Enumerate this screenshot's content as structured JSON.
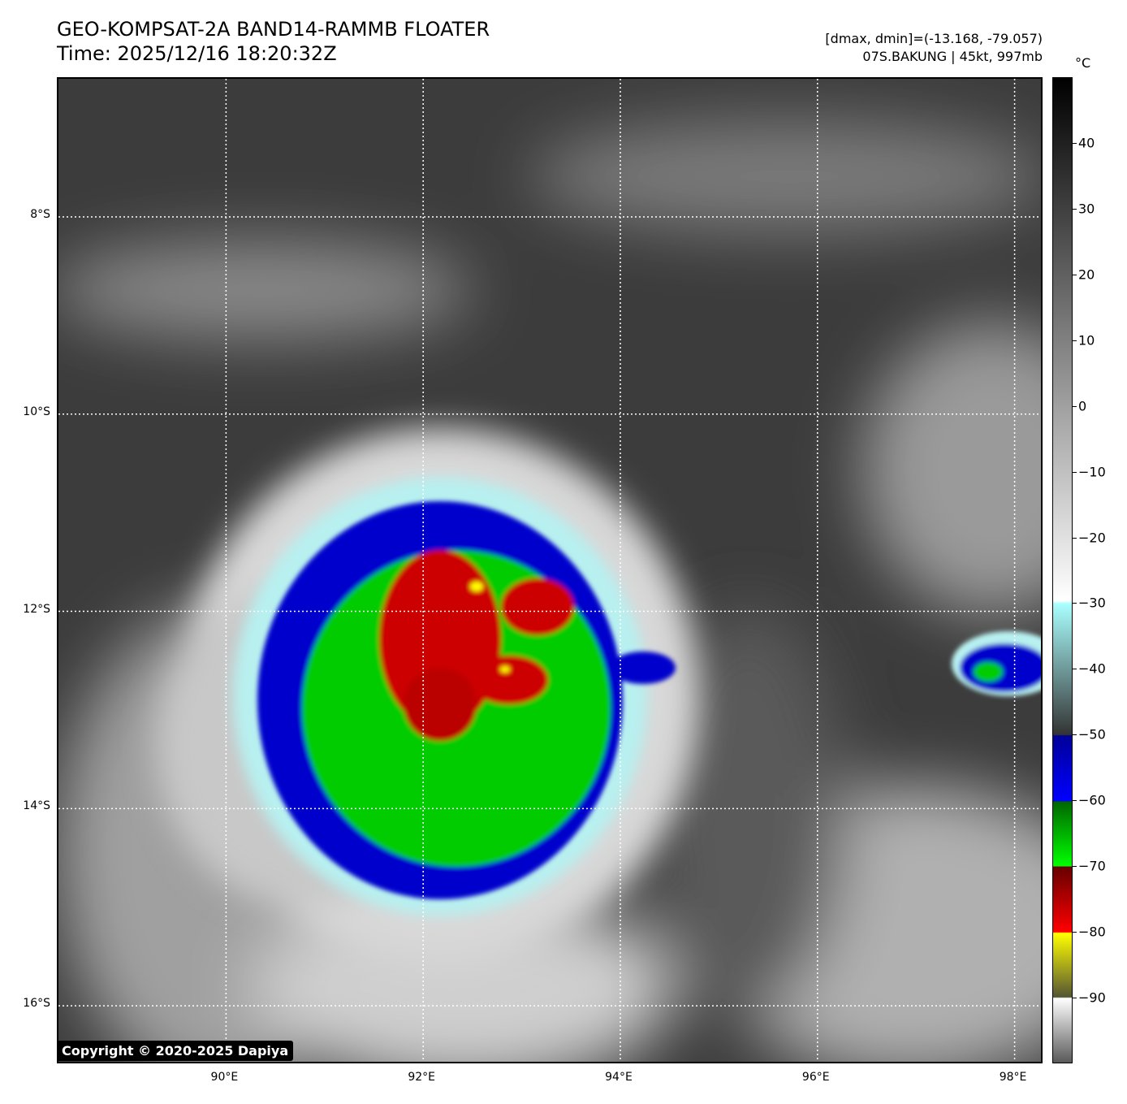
{
  "header": {
    "title": "GEO-KOMPSAT-2A BAND14-RAMMB FLOATER",
    "time": "Time: 2025/12/16 18:20:32Z",
    "dminmax": "[dmax, dmin]=(-13.168, -79.057)",
    "storm": "07S.BAKUNG | 45kt, 997mb"
  },
  "map": {
    "lat_labels": [
      "8°S",
      "10°S",
      "12°S",
      "14°S",
      "16°S"
    ],
    "lon_labels": [
      "90°E",
      "92°E",
      "94°E",
      "96°E",
      "98°E"
    ],
    "lat_values": [
      -8,
      -10,
      -12,
      -14,
      -16
    ],
    "lon_values": [
      90,
      92,
      94,
      96,
      98
    ],
    "lon_range": [
      88.3,
      98.3
    ],
    "lat_range": [
      -6.6,
      -16.6
    ],
    "storm_center": {
      "lon": 92.4,
      "lat": -12.3
    }
  },
  "colorbar": {
    "unit": "°C",
    "range": [
      -100,
      50
    ],
    "ticks": [
      40,
      30,
      20,
      10,
      0,
      -10,
      -20,
      -30,
      -40,
      -50,
      -60,
      -70,
      -80,
      -90
    ]
  },
  "copyright": "Copyright © 2020-2025 Dapiya"
}
